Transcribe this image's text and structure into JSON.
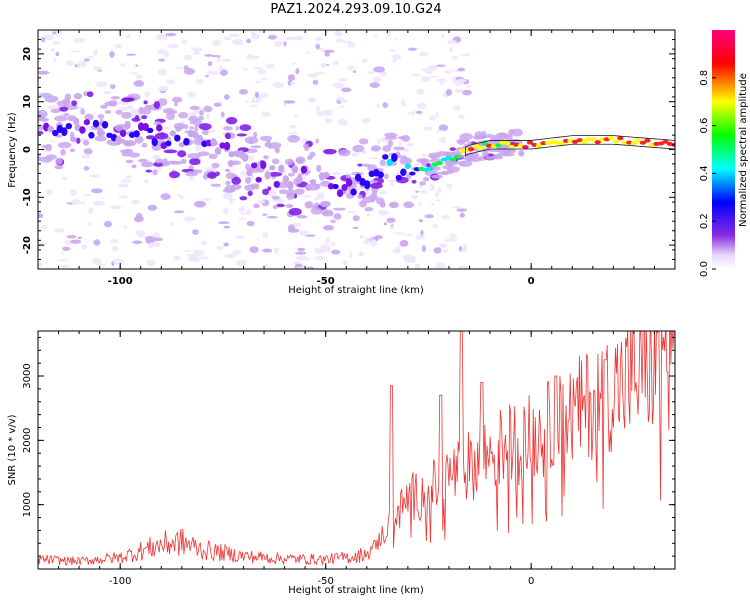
{
  "chart_data": [
    {
      "id": "spectrogram",
      "type": "heatmap",
      "title": "PAZ1.2024.293.09.10.G24",
      "xlabel": "Height of straight line (km)",
      "ylabel": "Frequency (Hz)",
      "xlim": [
        -120,
        35
      ],
      "ylim": [
        -25,
        25
      ],
      "x_ticks": [
        -100,
        -50,
        0
      ],
      "y_ticks": [
        -20,
        -10,
        0,
        10,
        20
      ],
      "colorbar": {
        "label": "Normalized spectral amplitude",
        "range": [
          0,
          1
        ],
        "ticks": [
          "0.0",
          "0.2",
          "0.4",
          "0.6",
          "0.8"
        ],
        "colormap": [
          "#ffffff",
          "#c9a6f0",
          "#6a00e0",
          "#0000ff",
          "#00ffff",
          "#00ff00",
          "#ffff00",
          "#ff0000",
          "#ff007f"
        ]
      },
      "ridge": {
        "x": [
          -115,
          -105,
          -95,
          -85,
          -75,
          -65,
          -55,
          -45,
          -35,
          -30,
          -25,
          -20,
          -15,
          -10,
          -5,
          0,
          10,
          20,
          35
        ],
        "frequency": [
          4,
          4,
          3,
          2,
          0,
          -5,
          -6,
          -8,
          -3,
          -5,
          -4,
          -2,
          0,
          1,
          1,
          1,
          2,
          2,
          1
        ],
        "amplitude": [
          0.25,
          0.28,
          0.3,
          0.28,
          0.2,
          0.18,
          0.2,
          0.22,
          0.4,
          0.45,
          0.55,
          0.6,
          0.75,
          0.8,
          0.85,
          0.9,
          0.85,
          0.85,
          0.85
        ]
      }
    },
    {
      "id": "snr",
      "type": "line",
      "xlabel": "Height of straight line (km)",
      "ylabel": "SNR (10 * v/v)",
      "xlim": [
        -120,
        35
      ],
      "ylim": [
        0,
        3700
      ],
      "x_ticks": [
        -100,
        -50,
        0
      ],
      "y_ticks": [
        1000,
        2000,
        3000
      ],
      "line_color": "#ee3333",
      "envelope": {
        "x": [
          -120,
          -110,
          -100,
          -90,
          -85,
          -80,
          -70,
          -60,
          -50,
          -42,
          -38,
          -35,
          -32,
          -30,
          -25,
          -20,
          -15,
          -10,
          -5,
          0,
          5,
          10,
          15,
          20,
          25,
          30,
          35
        ],
        "y": [
          150,
          120,
          180,
          380,
          420,
          300,
          200,
          160,
          150,
          200,
          350,
          650,
          900,
          1100,
          1200,
          1450,
          1600,
          1800,
          1950,
          2050,
          2200,
          2400,
          2600,
          2800,
          3000,
          3200,
          3350
        ]
      },
      "spikes": [
        {
          "x": -34,
          "y": 2850
        },
        {
          "x": -22,
          "y": 2700
        },
        {
          "x": -17,
          "y": 3700
        },
        {
          "x": -12,
          "y": 2900
        },
        {
          "x": 6,
          "y": 3000
        },
        {
          "x": 18,
          "y": 3250
        }
      ]
    }
  ]
}
